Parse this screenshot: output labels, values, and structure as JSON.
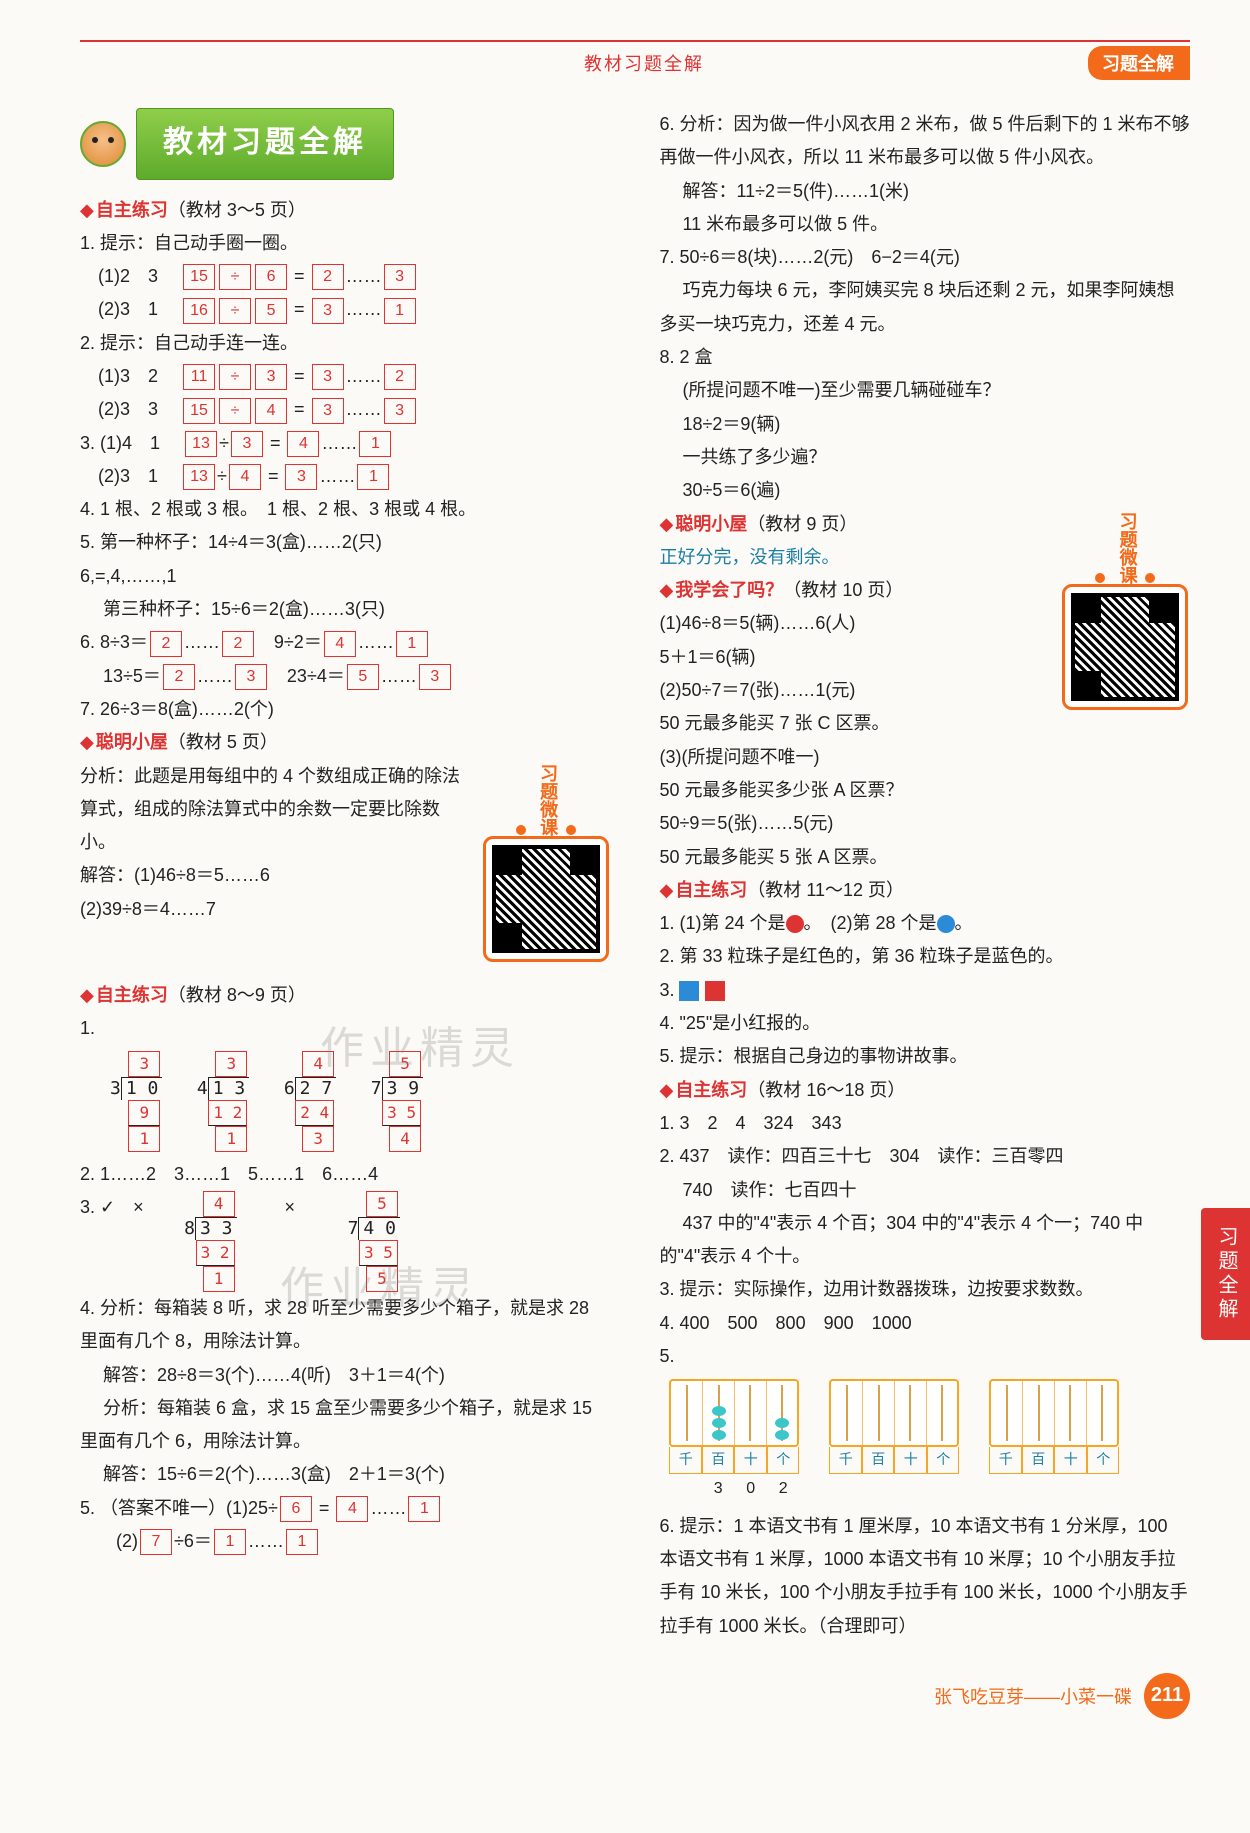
{
  "header": {
    "center": "教材习题全解",
    "right_pill": "习题全解"
  },
  "title": "教材习题全解",
  "side_tab": "习题全解",
  "qr_label": "习题微课",
  "left": {
    "sec1": {
      "label": "自主练习",
      "ref": "（教材 3～5 页）"
    },
    "q1_intro": "1. 提示：自己动手圈一圈。",
    "q1_1": "(1)2　3　",
    "q1_1b": [
      "15",
      "÷",
      "6",
      "=",
      "2",
      "……",
      "3"
    ],
    "q1_2": "(2)3　1　",
    "q1_2b": [
      "16",
      "÷",
      "5",
      "=",
      "3",
      "……",
      "1"
    ],
    "q2_intro": "2. 提示：自己动手连一连。",
    "q2_1": "(1)3　2　",
    "q2_1b": [
      "11",
      "÷",
      "3",
      "=",
      "3",
      "……",
      "2"
    ],
    "q2_2": "(2)3　3　",
    "q2_2b": [
      "15",
      "÷",
      "4",
      "=",
      "3",
      "……",
      "3"
    ],
    "q3_1": "3. (1)4　1　",
    "q3_1b": [
      "13",
      "÷",
      "3",
      "=",
      "4",
      "……",
      "1"
    ],
    "q3_2": "(2)3　1　",
    "q3_2b": [
      "13",
      "÷",
      "4",
      "=",
      "3",
      "……",
      "1"
    ],
    "q4": "4. 1 根、2 根或 3 根。　1 根、2 根、3 根或 4 根。",
    "q5a": "5. 第一种杯子：14÷4＝3(盒)……2(只)",
    "q5b": [
      "6",
      "=",
      "4",
      "……",
      "1"
    ],
    "q5c": "　 第三种杯子：15÷6＝2(盒)……3(只)",
    "q6a": "6. 8÷3＝",
    "q6a_b": [
      "2",
      "……",
      "2"
    ],
    "q6a2": "　9÷2＝",
    "q6a2_b": [
      "4",
      "……",
      "1"
    ],
    "q6b": "　 13÷5＝",
    "q6b_b": [
      "2",
      "……",
      "3"
    ],
    "q6b2": "　23÷4＝",
    "q6b2_b": [
      "5",
      "……",
      "3"
    ],
    "q7": "7. 26÷3＝8(盒)……2(个)",
    "sec2": {
      "label": "聪明小屋",
      "ref": "（教材 5 页）"
    },
    "s2a": "分析：此题是用每组中的 4 个数组成正确的除法算式，组成的除法算式中的余数一定要比除数小。",
    "s2b": "解答：(1)46÷8＝5……6",
    "s2c": "(2)39÷8＝4……7",
    "sec3": {
      "label": "自主练习",
      "ref": "（教材 8～9 页）"
    },
    "ldiv": [
      {
        "q": "3",
        "dv": "3",
        "dn": "1 0",
        "sub": "9",
        "rem": "1"
      },
      {
        "q": "3",
        "dv": "4",
        "dn": "1 3",
        "sub": "1 2",
        "rem": "1"
      },
      {
        "q": "4",
        "dv": "6",
        "dn": "2 7",
        "sub": "2 4",
        "rem": "3"
      },
      {
        "q": "5",
        "dv": "7",
        "dn": "3 9",
        "sub": "3 5",
        "rem": "4"
      }
    ],
    "q2line": "2. 1……2　3……1　5……1　6……4",
    "q3pre": "3. ✓　×　",
    "q3ldiv": [
      {
        "q": "4",
        "dv": "8",
        "dn": "3 3",
        "sub": "3 2",
        "rem": "1"
      },
      {
        "q": "5",
        "dv": "7",
        "dn": "4 0",
        "sub": "3 5",
        "rem": "5"
      }
    ],
    "q3mid": "　×　",
    "q4a": "4. 分析：每箱装 8 听，求 28 听至少需要多少个箱子，就是求 28 里面有几个 8，用除法计算。",
    "q4b": "　 解答：28÷8＝3(个)……4(听)　3＋1＝4(个)",
    "q4c": "　 分析：每箱装 6 盒，求 15 盒至少需要多少个箱子，就是求 15 里面有几个 6，用除法计算。",
    "q4d": "　 解答：15÷6＝2(个)……3(盒)　2＋1＝3(个)",
    "q5pre": "5. （答案不唯一）(1)25÷",
    "q5_2": "(2)",
    "q5_2b": [
      "7",
      "÷6＝",
      "1",
      "……",
      "1"
    ]
  },
  "right": {
    "q6a": "6. 分析：因为做一件小风衣用 2 米布，做 5 件后剩下的 1 米布不够再做一件小风衣，所以 11 米布最多可以做 5 件小风衣。",
    "q6b": "　 解答：11÷2＝5(件)……1(米)",
    "q6c": "　 11 米布最多可以做 5 件。",
    "q7a": "7. 50÷6＝8(块)……2(元)　6−2＝4(元)",
    "q7b": "　 巧克力每块 6 元，李阿姨买完 8 块后还剩 2 元，如果李阿姨想多买一块巧克力，还差 4 元。",
    "q8a": "8. 2 盒",
    "q8b": "　 (所提问题不唯一)至少需要几辆碰碰车？",
    "q8c": "　 18÷2＝9(辆)",
    "q8d": "　 一共练了多少遍？",
    "q8e": "　 30÷5＝6(遍)",
    "secCM": {
      "label": "聪明小屋",
      "ref": "（教材 9 页）"
    },
    "cm_line": "正好分完，没有剩余。",
    "secWX": {
      "label": "我学会了吗？",
      "ref": "（教材 10 页）"
    },
    "wx1": "(1)46÷8＝5(辆)……6(人)",
    "wx2": "5＋1＝6(辆)",
    "wx3": "(2)50÷7＝7(张)……1(元)",
    "wx4": "50 元最多能买 7 张 C 区票。",
    "wx5": "(3)(所提问题不唯一)",
    "wx6": "50 元最多能买多少张 A 区票？",
    "wx7": "50÷9＝5(张)……5(元)",
    "wx8": "50 元最多能买 5 张 A 区票。",
    "secZZ": {
      "label": "自主练习",
      "ref": "（教材 11～12 页）"
    },
    "z1a": "1. (1)第 24 个是",
    "z1b": "。　(2)第 28 个是",
    "z1c": "。",
    "z2": "2. 第 33 粒珠子是红色的，第 36 粒珠子是蓝色的。",
    "z4": "4. \"25\"是小红报的。",
    "z5": "5. 提示：根据自己身边的事物讲故事。",
    "secZZ2": {
      "label": "自主练习",
      "ref": "（教材 16～18 页）"
    },
    "y1": "1. 3　2　4　324　343",
    "y2a": "2. 437　读作：四百三十七　304　读作：三百零四",
    "y2b": "　 740　读作：七百四十",
    "y2c": "　 437 中的\"4\"表示 4 个百；304 中的\"4\"表示 4 个一；740 中的\"4\"表示 4 个十。",
    "y3": "3. 提示：实际操作，边用计数器拨珠，边按要求数数。",
    "y4": "4. 400　500　800　900　1000",
    "abacus": [
      {
        "cols": [
          3,
          0,
          2
        ],
        "num": [
          "3",
          "0",
          "2"
        ]
      },
      {
        "cols": [
          0,
          0,
          0
        ],
        "num": [
          "",
          "",
          ""
        ]
      },
      {
        "cols": [
          0,
          0,
          0
        ],
        "num": [
          "",
          "",
          ""
        ]
      }
    ],
    "ab_labels": [
      "千",
      "百",
      "十",
      "个"
    ],
    "y6": "6. 提示：1 本语文书有 1 厘米厚，10 本语文书有 1 分米厚，100 本语文书有 1 米厚，1000 本语文书有 10 米厚；10 个小朋友手拉手有 10 米长，100 个小朋友手拉手有 100 米长，1000 个小朋友手拉手有 1000 米长。（合理即可）"
  },
  "footer": {
    "proverb": "张飞吃豆芽——小菜一碟",
    "page": "211"
  }
}
